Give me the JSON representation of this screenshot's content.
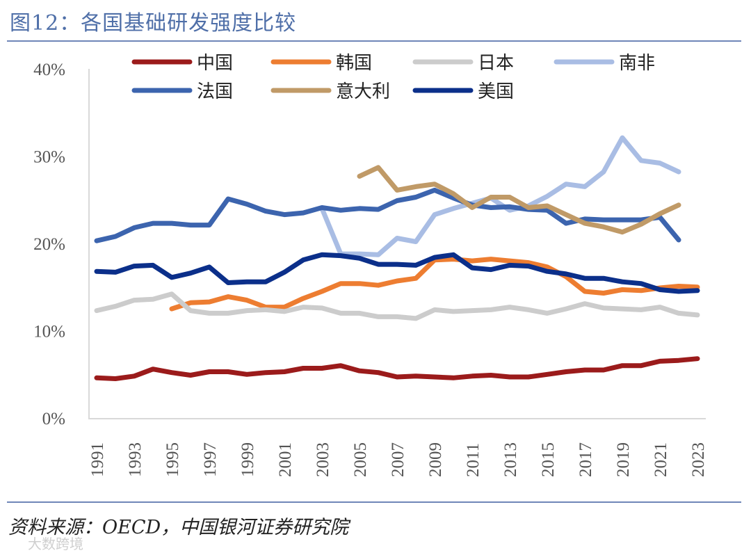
{
  "title": "图12：各国基础研发强度比较",
  "source": "资料来源：OECD，中国银河证券研究院",
  "watermark": "大数跨境",
  "chart_data": {
    "type": "line",
    "title": "图12：各国基础研发强度比较",
    "xlabel": "",
    "ylabel": "",
    "ylim": [
      0,
      40
    ],
    "yticks": [
      "0%",
      "10%",
      "20%",
      "30%",
      "40%"
    ],
    "xticks": [
      "1991",
      "1993",
      "1995",
      "1997",
      "1999",
      "2001",
      "2003",
      "2005",
      "2007",
      "2009",
      "2011",
      "2013",
      "2015",
      "2017",
      "2019",
      "2021",
      "2023"
    ],
    "legend_position": "top",
    "grid": false,
    "series": [
      {
        "name": "中国",
        "color": "#9b1b1b",
        "start": 1991,
        "values": [
          4.6,
          4.5,
          4.8,
          5.6,
          5.2,
          4.9,
          5.3,
          5.3,
          5.0,
          5.2,
          5.3,
          5.7,
          5.7,
          6.0,
          5.4,
          5.2,
          4.7,
          4.8,
          4.7,
          4.6,
          4.8,
          4.9,
          4.7,
          4.7,
          5.0,
          5.3,
          5.5,
          5.5,
          6.0,
          6.0,
          6.5,
          6.6,
          6.8
        ]
      },
      {
        "name": "韩国",
        "color": "#ed7d31",
        "start": 1995,
        "values": [
          12.5,
          13.2,
          13.3,
          13.9,
          13.5,
          12.7,
          12.7,
          13.7,
          14.5,
          15.4,
          15.4,
          15.2,
          15.7,
          16.0,
          18.1,
          18.2,
          18.0,
          18.2,
          18.0,
          17.8,
          17.3,
          16.2,
          14.5,
          14.3,
          14.7,
          14.6,
          14.9,
          15.1,
          15.0
        ]
      },
      {
        "name": "日本",
        "color": "#cccccc",
        "start": 1991,
        "values": [
          12.3,
          12.8,
          13.5,
          13.6,
          14.2,
          12.3,
          12.0,
          12.0,
          12.3,
          12.4,
          12.2,
          12.7,
          12.6,
          12.0,
          12.0,
          11.6,
          11.6,
          11.4,
          12.4,
          12.2,
          12.3,
          12.4,
          12.7,
          12.4,
          12.0,
          12.5,
          13.1,
          12.6,
          12.5,
          12.4,
          12.7,
          12.0,
          11.8
        ]
      },
      {
        "name": "南非",
        "color": "#a9bde4",
        "start": 2003,
        "values": [
          24.0,
          18.8,
          18.8,
          18.7,
          20.6,
          20.2,
          23.3,
          24.0,
          24.6,
          25.2,
          23.8,
          24.3,
          25.4,
          26.8,
          26.5,
          28.2,
          32.1,
          29.5,
          29.2,
          28.2
        ]
      },
      {
        "name": "法国",
        "color": "#3c64ae",
        "start": 1991,
        "values": [
          20.3,
          20.8,
          21.8,
          22.3,
          22.3,
          22.1,
          22.1,
          25.1,
          24.5,
          23.7,
          23.3,
          23.5,
          24.1,
          23.8,
          24.0,
          23.9,
          24.9,
          25.3,
          26.1,
          25.2,
          24.4,
          24.1,
          24.2,
          23.9,
          23.8,
          22.3,
          22.8,
          22.7,
          22.7,
          22.7,
          23.0,
          20.4
        ]
      },
      {
        "name": "意大利",
        "color": "#c09a67",
        "start": 2005,
        "values": [
          27.7,
          28.7,
          26.1,
          26.5,
          26.8,
          25.7,
          24.1,
          25.3,
          25.3,
          24.1,
          24.3,
          23.3,
          22.3,
          21.9,
          21.3,
          22.2,
          23.4,
          24.4
        ]
      },
      {
        "name": "美国",
        "color": "#0b2f8a",
        "start": 1991,
        "values": [
          16.8,
          16.7,
          17.4,
          17.5,
          16.1,
          16.6,
          17.3,
          15.5,
          15.6,
          15.6,
          16.7,
          18.1,
          18.7,
          18.6,
          18.3,
          17.6,
          17.6,
          17.5,
          18.4,
          18.7,
          17.2,
          17.0,
          17.5,
          17.4,
          16.8,
          16.5,
          16.0,
          16.0,
          15.6,
          15.4,
          14.7,
          14.5,
          14.6
        ]
      }
    ]
  }
}
